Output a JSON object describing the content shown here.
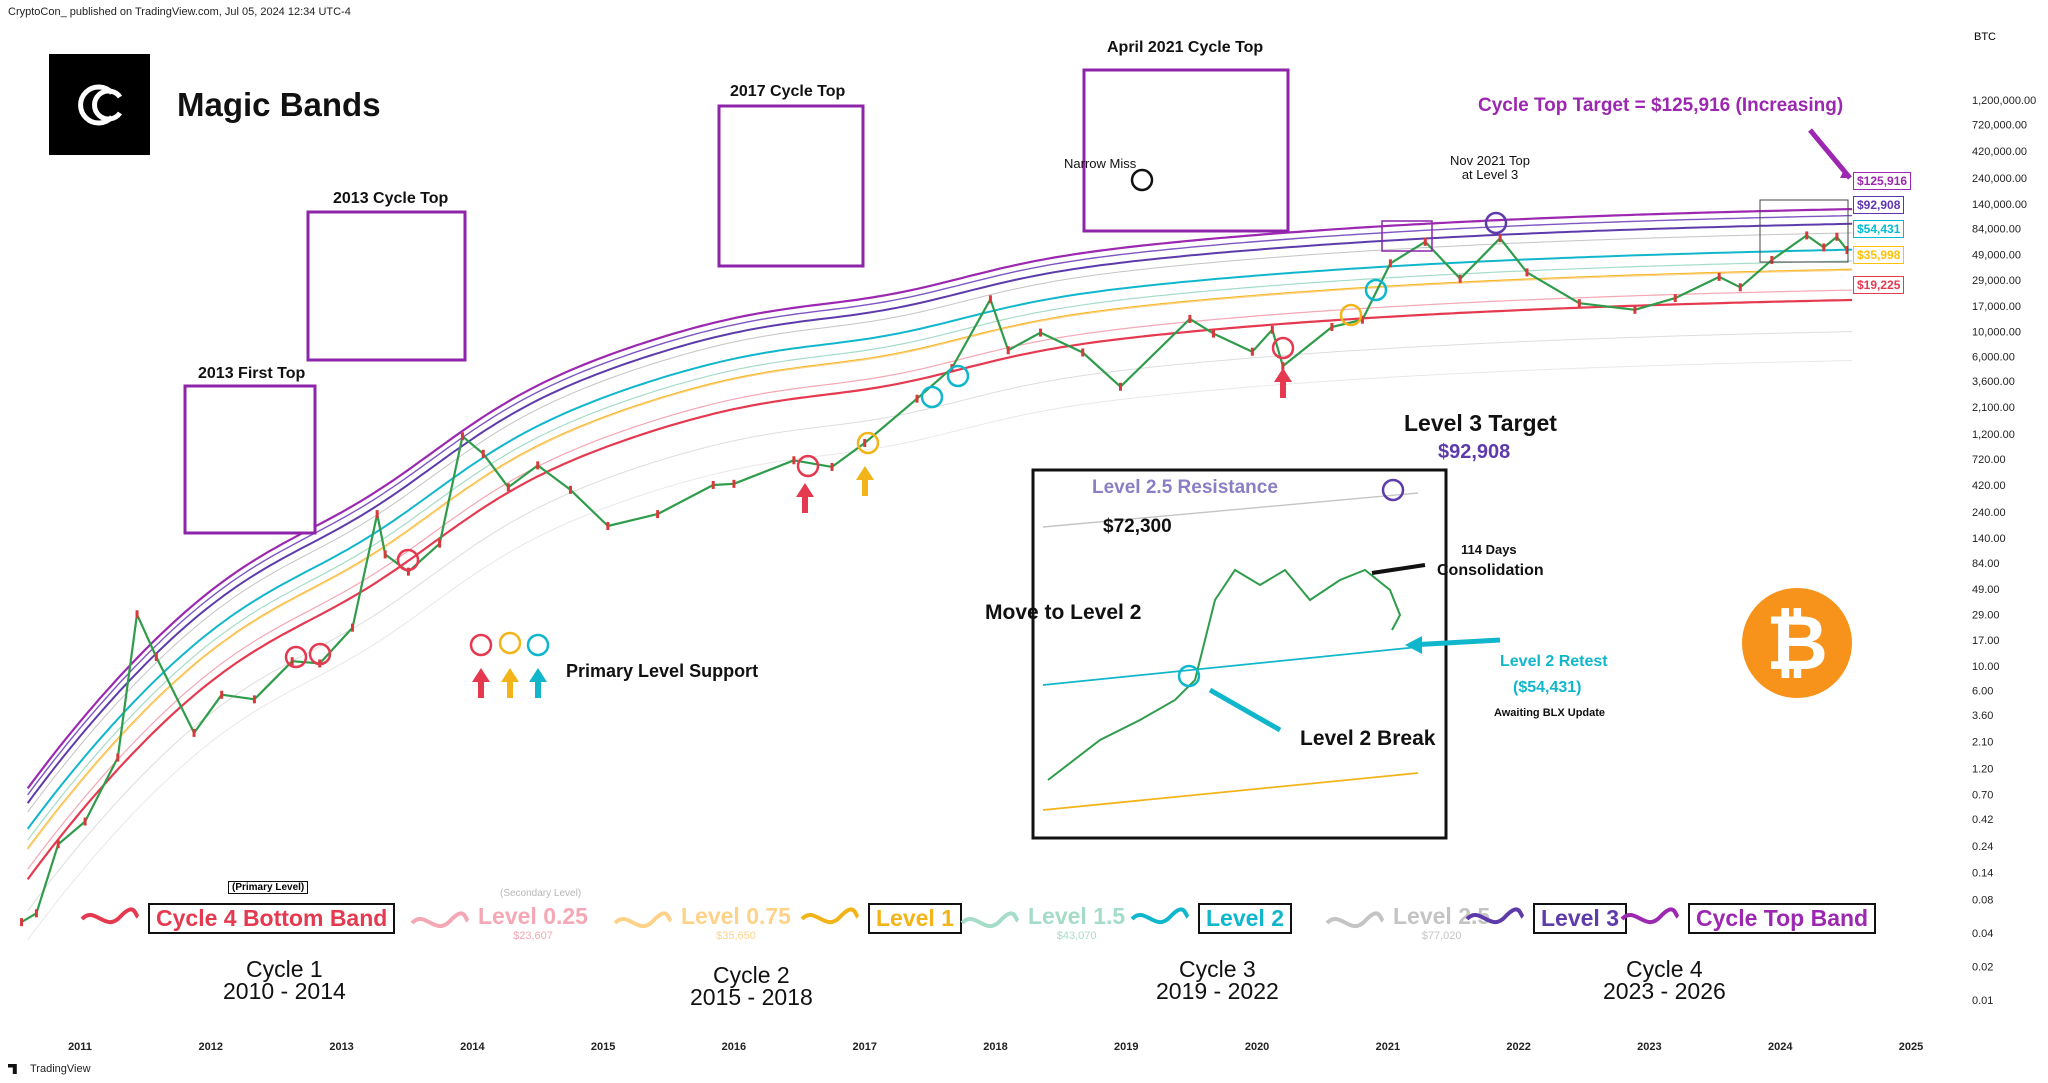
{
  "header": {
    "publisher": "CryptoCon_ published on TradingView.com, Jul 05, 2024 12:34 UTC-4"
  },
  "footer": {
    "brand": "TradingView"
  },
  "brand": {
    "title": "Magic Bands"
  },
  "price_axis": {
    "unit": "BTC",
    "labels": [
      "1,200,000.00",
      "720,000.00",
      "420,000.00",
      "240,000.00",
      "140,000.00",
      "84,000.00",
      "49,000.00",
      "29,000.00",
      "17,000.00",
      "10,000.00",
      "6,000.00",
      "3,600.00",
      "2,100.00",
      "1,200.00",
      "720.00",
      "420.00",
      "240.00",
      "140.00",
      "84.00",
      "49.00",
      "29.00",
      "17.00",
      "10.00",
      "6.00",
      "3.60",
      "2.10",
      "1.20",
      "0.70",
      "0.42",
      "0.24",
      "0.14",
      "0.08",
      "0.04",
      "0.02",
      "0.01"
    ]
  },
  "time_axis": {
    "labels": [
      "2011",
      "2012",
      "2013",
      "2014",
      "2015",
      "2016",
      "2017",
      "2018",
      "2019",
      "2020",
      "2021",
      "2022",
      "2023",
      "2024",
      "2025"
    ]
  },
  "band_tags": [
    {
      "label": "$125,916",
      "color": "#9c27b0"
    },
    {
      "label": "$92,908",
      "color": "#5e35b1"
    },
    {
      "label": "$54,431",
      "color": "#00bcd4"
    },
    {
      "label": "$35,998",
      "color": "#ffc107"
    },
    {
      "label": "$19,225",
      "color": "#e53950"
    }
  ],
  "annotations": {
    "cycle_top_target": "Cycle Top Target = $125,916 (Increasing)",
    "nov_2021_top": [
      "Nov 2021 Top",
      "at Level 3"
    ],
    "april_2021": "April 2021 Cycle Top",
    "narrow_miss": "Narrow Miss",
    "top_2017": "2017 Cycle Top",
    "top_2013": "2013 Cycle Top",
    "first_top_2013": "2013 First Top",
    "primary_level_support": "Primary Level Support",
    "level3_target_title": "Level 3 Target",
    "level3_target_value": "$92,908",
    "level25_resistance": "Level 2.5 Resistance",
    "price_72300": "$72,300",
    "days_114": "114 Days",
    "consolidation": "Consolidation",
    "move_level2": "Move to  Level 2",
    "level2_retest": "Level 2 Retest",
    "level2_retest_value": "($54,431)",
    "awaiting": "Awaiting BLX Update",
    "level2_break": "Level 2 Break",
    "btc_symbol": "₿"
  },
  "legend": {
    "primary_level_note": "(Primary Level)",
    "secondary_level_note": "(Secondary Level)",
    "items": [
      {
        "label": "Cycle 4 Bottom Band",
        "color": "#e53950",
        "sub": "",
        "boxed": true
      },
      {
        "label": "Level 0.25",
        "color": "#f4a7b4",
        "sub": "$23,607",
        "boxed": false
      },
      {
        "label": "Level 0.75",
        "color": "#ffd28a",
        "sub": "$35,650",
        "boxed": false
      },
      {
        "label": "Level 1",
        "color": "#f2b418",
        "sub": "",
        "boxed": true
      },
      {
        "label": "Level 1.5",
        "color": "#a5dcc8",
        "sub": "$43,070",
        "boxed": false
      },
      {
        "label": "Level 2",
        "color": "#10b7cc",
        "sub": "",
        "boxed": true
      },
      {
        "label": "Level 2.5",
        "color": "#c4c4c4",
        "sub": "$77,020",
        "boxed": false
      },
      {
        "label": "Level 3",
        "color": "#5e3bab",
        "sub": "",
        "boxed": true
      },
      {
        "label": "Cycle Top Band",
        "color": "#9c27b0",
        "sub": "",
        "boxed": true
      }
    ]
  },
  "cycles": [
    {
      "name": "Cycle 1",
      "years": "2010 - 2014"
    },
    {
      "name": "Cycle 2",
      "years": "2015 - 2018"
    },
    {
      "name": "Cycle 3",
      "years": "2019 - 2022"
    },
    {
      "name": "Cycle 4",
      "years": "2023 - 2026"
    }
  ],
  "chart_data": {
    "type": "line",
    "xlabel": "",
    "ylabel": "",
    "y_scale": "log",
    "x_range": [
      "2010-07",
      "2025-03"
    ],
    "y_range": [
      0.01,
      2100000
    ],
    "price_series": {
      "name": "BTC",
      "points": [
        [
          "2010-07-20",
          0.05
        ],
        [
          "2010-09-01",
          0.06
        ],
        [
          "2010-11-01",
          0.25
        ],
        [
          "2011-01-15",
          0.4
        ],
        [
          "2011-04-15",
          1.5
        ],
        [
          "2011-06-08",
          29
        ],
        [
          "2011-08-01",
          12
        ],
        [
          "2011-11-15",
          2.5
        ],
        [
          "2012-02-01",
          5.5
        ],
        [
          "2012-05-01",
          5.0
        ],
        [
          "2012-08-15",
          11
        ],
        [
          "2012-11-01",
          10.5
        ],
        [
          "2013-02-01",
          22
        ],
        [
          "2013-04-09",
          230
        ],
        [
          "2013-05-01",
          100
        ],
        [
          "2013-07-05",
          70
        ],
        [
          "2013-10-01",
          125
        ],
        [
          "2013-12-04",
          1150
        ],
        [
          "2014-02-01",
          800
        ],
        [
          "2014-04-10",
          400
        ],
        [
          "2014-07-01",
          630
        ],
        [
          "2014-10-01",
          380
        ],
        [
          "2015-01-14",
          180
        ],
        [
          "2015-06-01",
          230
        ],
        [
          "2015-11-04",
          420
        ],
        [
          "2016-01-01",
          430
        ],
        [
          "2016-06-16",
          700
        ],
        [
          "2016-10-01",
          610
        ],
        [
          "2017-01-01",
          1000
        ],
        [
          "2017-05-25",
          2500
        ],
        [
          "2017-09-01",
          4700
        ],
        [
          "2017-12-17",
          19500
        ],
        [
          "2018-02-06",
          6800
        ],
        [
          "2018-05-05",
          9800
        ],
        [
          "2018-09-01",
          6500
        ],
        [
          "2018-12-15",
          3200
        ],
        [
          "2019-06-26",
          13000
        ],
        [
          "2019-09-01",
          9600
        ],
        [
          "2019-12-18",
          6600
        ],
        [
          "2020-02-13",
          10400
        ],
        [
          "2020-03-12",
          4900
        ],
        [
          "2020-07-27",
          11000
        ],
        [
          "2020-10-21",
          12800
        ],
        [
          "2021-01-08",
          41000
        ],
        [
          "2021-04-14",
          64000
        ],
        [
          "2021-07-20",
          29800
        ],
        [
          "2021-11-10",
          69000
        ],
        [
          "2022-01-24",
          34000
        ],
        [
          "2022-06-18",
          18000
        ],
        [
          "2022-11-21",
          15700
        ],
        [
          "2023-03-12",
          20000
        ],
        [
          "2023-07-13",
          31000
        ],
        [
          "2023-09-11",
          25000
        ],
        [
          "2023-12-08",
          44000
        ],
        [
          "2024-03-14",
          73000
        ],
        [
          "2024-05-01",
          57000
        ],
        [
          "2024-06-07",
          71000
        ],
        [
          "2024-07-05",
          54000
        ]
      ]
    },
    "bands": [
      {
        "name": "Cycle Top Band",
        "color": "#9c27b0",
        "end_value": 125916,
        "peak_2013": 1650,
        "peak_2017": 24000,
        "peak_2021": 85000,
        "start_value": 0.5
      },
      {
        "name": "Level 3",
        "color": "#5e3bab",
        "end_value": 92908
      },
      {
        "name": "Level 2",
        "color": "#10b7cc",
        "end_value": 54431
      },
      {
        "name": "Level 1",
        "color": "#f2b418",
        "end_value": 35998
      },
      {
        "name": "Cycle 4 Bottom Band",
        "color": "#e53950",
        "end_value": 19225
      }
    ]
  }
}
